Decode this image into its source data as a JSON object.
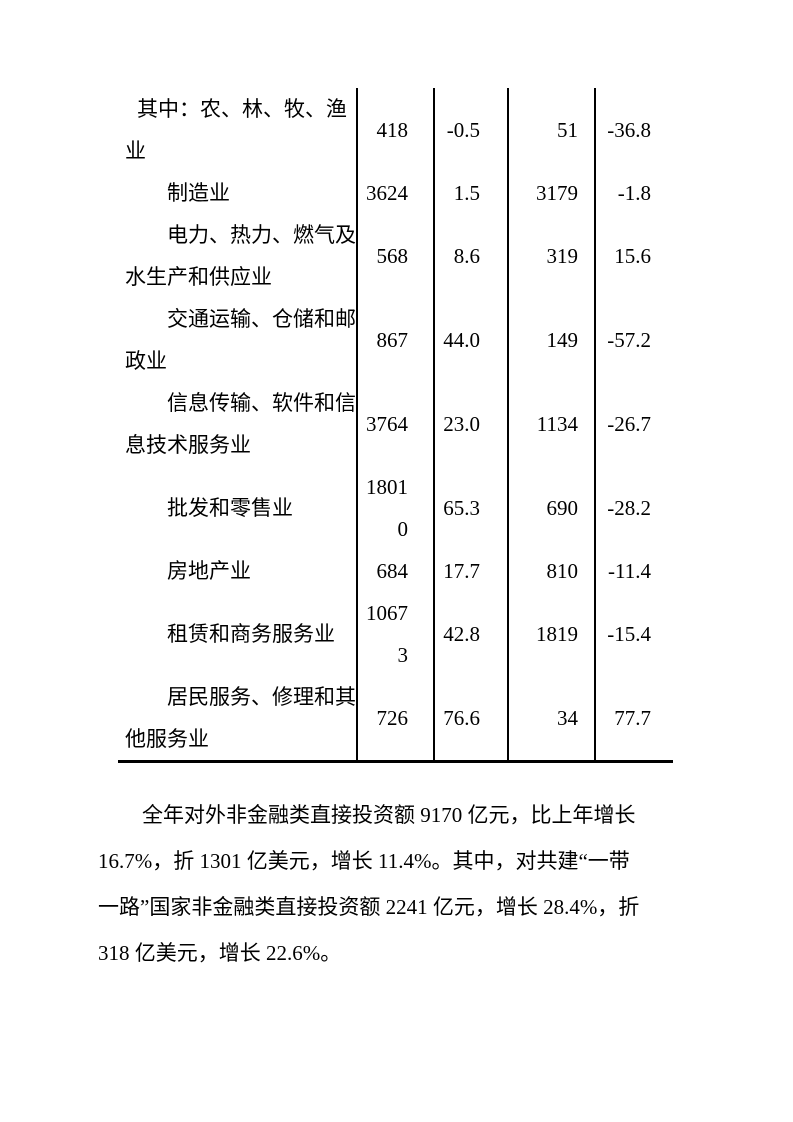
{
  "document": {
    "background_color": "#ffffff",
    "text_color": "#000000",
    "border_color": "#000000"
  },
  "table": {
    "note": "continuation of industry investment table; columns: industry, value, growth %, value, growth %",
    "rows": [
      {
        "label_lines": [
          "其中：农、林、牧、渔",
          "业"
        ],
        "cells": [
          [
            "418"
          ],
          [
            "-0.5"
          ],
          [
            "51"
          ],
          [
            "-36.8"
          ]
        ]
      },
      {
        "label_lines": [
          "制造业"
        ],
        "cells": [
          [
            "3624"
          ],
          [
            "1.5"
          ],
          [
            "3179"
          ],
          [
            "-1.8"
          ]
        ]
      },
      {
        "label_lines": [
          "电力、热力、燃气及",
          "水生产和供应业"
        ],
        "cells": [
          [
            "568"
          ],
          [
            "8.6"
          ],
          [
            "319"
          ],
          [
            "15.6"
          ]
        ]
      },
      {
        "label_lines": [
          "交通运输、仓储和邮",
          "政业"
        ],
        "cells": [
          [
            "867"
          ],
          [
            "44.0"
          ],
          [
            "149"
          ],
          [
            "-57.2"
          ]
        ]
      },
      {
        "label_lines": [
          "信息传输、软件和信",
          "息技术服务业"
        ],
        "cells": [
          [
            "3764"
          ],
          [
            "23.0"
          ],
          [
            "1134"
          ],
          [
            "-26.7"
          ]
        ]
      },
      {
        "label_lines": [
          "批发和零售业"
        ],
        "cells": [
          [
            "1801",
            "0"
          ],
          [
            "65.3"
          ],
          [
            "690"
          ],
          [
            "-28.2"
          ]
        ]
      },
      {
        "label_lines": [
          "房地产业"
        ],
        "cells": [
          [
            "684"
          ],
          [
            "17.7"
          ],
          [
            "810"
          ],
          [
            "-11.4"
          ]
        ]
      },
      {
        "label_lines": [
          "租赁和商务服务业"
        ],
        "cells": [
          [
            "1067",
            "3"
          ],
          [
            "42.8"
          ],
          [
            "1819"
          ],
          [
            "-15.4"
          ]
        ]
      },
      {
        "label_lines": [
          "居民服务、修理和其",
          "他服务业"
        ],
        "cells": [
          [
            "726"
          ],
          [
            "76.6"
          ],
          [
            "34"
          ],
          [
            "77.7"
          ]
        ]
      }
    ]
  },
  "paragraph": {
    "lines": [
      "全年对外非金融类直接投资额 9170 亿元，比上年增长",
      "16.7%，折 1301 亿美元，增长 11.4%。其中，对共建“一带",
      "一路”国家非金融类直接投资额 2241 亿元，增长 28.4%，折",
      "318 亿美元，增长 22.6%。"
    ]
  }
}
